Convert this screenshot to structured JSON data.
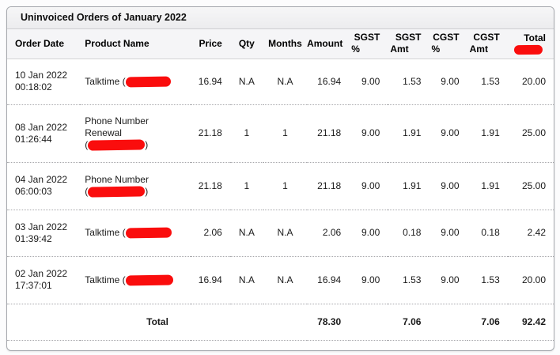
{
  "title_bar": {
    "title": "Uninvoiced Orders of January 2022"
  },
  "colors": {
    "redaction_red": "#fa0d0d"
  },
  "table": {
    "columns": [
      {
        "key": "order_date",
        "label": "Order Date",
        "align": "left"
      },
      {
        "key": "product",
        "label": "Product Name",
        "align": "left"
      },
      {
        "key": "price",
        "label": "Price",
        "align": "right"
      },
      {
        "key": "qty",
        "label": "Qty",
        "align": "center"
      },
      {
        "key": "months",
        "label": "Months",
        "align": "center"
      },
      {
        "key": "amount",
        "label": "Amount",
        "align": "right"
      },
      {
        "key": "sgst_pct",
        "label": "SGST %",
        "stack": [
          "SGST",
          "%"
        ],
        "align": "right"
      },
      {
        "key": "sgst_amt",
        "label": "SGST Amt",
        "stack": [
          "SGST",
          "Amt"
        ],
        "align": "right"
      },
      {
        "key": "cgst_pct",
        "label": "CGST %",
        "stack": [
          "CGST",
          "%"
        ],
        "align": "right"
      },
      {
        "key": "cgst_amt",
        "label": "CGST Amt",
        "stack": [
          "CGST",
          "Amt"
        ],
        "align": "right"
      },
      {
        "key": "total",
        "label": "Total",
        "align": "right",
        "redacted_below": true
      }
    ],
    "rows": [
      {
        "order_date_lines": [
          "10 Jan 2022",
          "00:18:02"
        ],
        "product_lines": [
          [
            {
              "t": "Talktime ("
            },
            {
              "redact_w": 57
            }
          ]
        ],
        "price": "16.94",
        "qty": "N.A",
        "months": "N.A",
        "amount": "16.94",
        "sgst_pct": "9.00",
        "sgst_amt": "1.53",
        "cgst_pct": "9.00",
        "cgst_amt": "1.53",
        "total": "20.00"
      },
      {
        "order_date_lines": [
          "08 Jan 2022",
          "01:26:44"
        ],
        "product_lines": [
          [
            {
              "t": "Phone Number"
            }
          ],
          [
            {
              "t": "Renewal"
            }
          ],
          [
            {
              "t": "("
            },
            {
              "redact_w": 72
            },
            {
              "t": ")"
            }
          ]
        ],
        "price": "21.18",
        "qty": "1",
        "months": "1",
        "amount": "21.18",
        "sgst_pct": "9.00",
        "sgst_amt": "1.91",
        "cgst_pct": "9.00",
        "cgst_amt": "1.91",
        "total": "25.00"
      },
      {
        "order_date_lines": [
          "04 Jan 2022",
          "06:00:03"
        ],
        "product_lines": [
          [
            {
              "t": "Phone Number"
            }
          ],
          [
            {
              "t": "("
            },
            {
              "redact_w": 72
            },
            {
              "t": ")"
            }
          ]
        ],
        "price": "21.18",
        "qty": "1",
        "months": "1",
        "amount": "21.18",
        "sgst_pct": "9.00",
        "sgst_amt": "1.91",
        "cgst_pct": "9.00",
        "cgst_amt": "1.91",
        "total": "25.00"
      },
      {
        "order_date_lines": [
          "03 Jan 2022",
          "01:39:42"
        ],
        "product_lines": [
          [
            {
              "t": "Talktime ("
            },
            {
              "redact_w": 58
            }
          ]
        ],
        "price": "2.06",
        "qty": "N.A",
        "months": "N.A",
        "amount": "2.06",
        "sgst_pct": "9.00",
        "sgst_amt": "0.18",
        "cgst_pct": "9.00",
        "cgst_amt": "0.18",
        "total": "2.42"
      },
      {
        "order_date_lines": [
          "02 Jan 2022",
          "17:37:01"
        ],
        "product_lines": [
          [
            {
              "t": "Talktime ("
            },
            {
              "redact_w": 60
            }
          ]
        ],
        "price": "16.94",
        "qty": "N.A",
        "months": "N.A",
        "amount": "16.94",
        "sgst_pct": "9.00",
        "sgst_amt": "1.53",
        "cgst_pct": "9.00",
        "cgst_amt": "1.53",
        "total": "20.00"
      }
    ],
    "totals": {
      "label": "Total",
      "amount": "78.30",
      "sgst_amt": "7.06",
      "cgst_amt": "7.06",
      "total": "92.42"
    }
  }
}
